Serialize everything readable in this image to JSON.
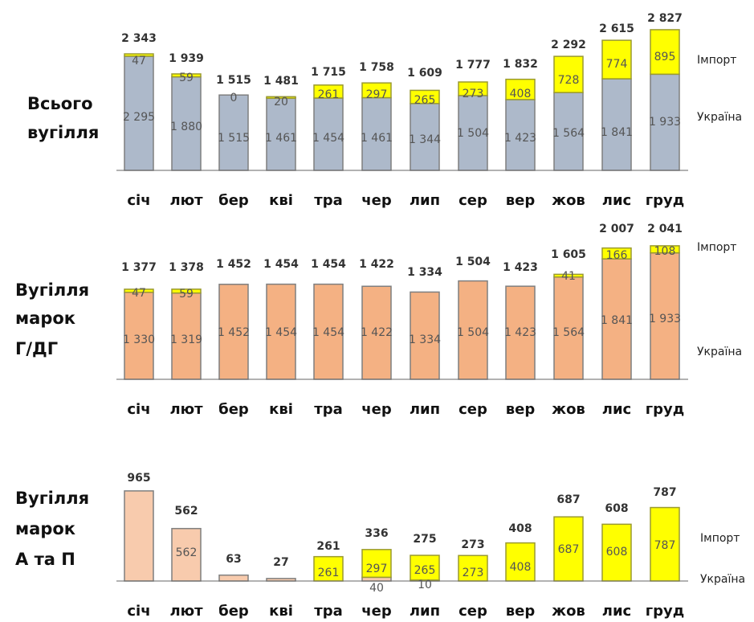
{
  "colors": {
    "ukraine_total": "#adb9ca",
    "ukraine_gdg": "#f4b183",
    "ukraine_ap": "#f8cbad",
    "import": "#ffff00",
    "bar_stroke": "#7f7f7f",
    "import_stroke": "#9a9a30"
  },
  "chart_data": [
    {
      "type": "bar",
      "stacked": true,
      "row_title": [
        "Всього",
        "вугілля"
      ],
      "categories": [
        "січ",
        "лют",
        "бер",
        "кві",
        "тра",
        "чер",
        "лип",
        "сер",
        "вер",
        "жов",
        "лис",
        "груд"
      ],
      "series": [
        {
          "name": "Україна",
          "values": [
            2295,
            1880,
            1515,
            1461,
            1454,
            1461,
            1344,
            1504,
            1423,
            1564,
            1841,
            1933
          ],
          "labels": [
            "2 295",
            "1 880",
            "1 515",
            "1 461",
            "1 454",
            "1 461",
            "1 344",
            "1 504",
            "1 423",
            "1 564",
            "1 841",
            "1 933"
          ]
        },
        {
          "name": "Імпорт",
          "values": [
            47,
            59,
            0,
            20,
            261,
            297,
            265,
            273,
            408,
            728,
            774,
            895
          ],
          "labels": [
            "47",
            "59",
            "0",
            "20",
            "261",
            "297",
            "265",
            "273",
            "408",
            "728",
            "774",
            "895"
          ]
        }
      ],
      "totals": [
        "2 343",
        "1 939",
        "1 515",
        "1 481",
        "1 715",
        "1 758",
        "1 609",
        "1 777",
        "1 832",
        "2 292",
        "2 615",
        "2 827"
      ],
      "legend": {
        "import": "Імпорт",
        "ukraine": "Україна"
      },
      "ylim": [
        0,
        2900
      ]
    },
    {
      "type": "bar",
      "stacked": true,
      "row_title": [
        "Вугілля",
        "марок",
        "Г/ДГ"
      ],
      "categories": [
        "січ",
        "лют",
        "бер",
        "кві",
        "тра",
        "чер",
        "лип",
        "сер",
        "вер",
        "жов",
        "лис",
        "груд"
      ],
      "series": [
        {
          "name": "Україна",
          "values": [
            1330,
            1319,
            1452,
            1454,
            1454,
            1422,
            1334,
            1504,
            1423,
            1564,
            1841,
            1933
          ],
          "labels": [
            "1 330",
            "1 319",
            "1 452",
            "1 454",
            "1 454",
            "1 422",
            "1 334",
            "1 504",
            "1 423",
            "1 564",
            "1 841",
            "1 933"
          ]
        },
        {
          "name": "Імпорт",
          "values": [
            47,
            59,
            0,
            0,
            0,
            0,
            0,
            0,
            0,
            41,
            166,
            108
          ],
          "labels": [
            "47",
            "59",
            "",
            "",
            "",
            "",
            "",
            "",
            "",
            "41",
            "166",
            "108"
          ]
        }
      ],
      "totals": [
        "1 377",
        "1 378",
        "1 452",
        "1 454",
        "1 454",
        "1 422",
        "1 334",
        "1 504",
        "1 423",
        "1 605",
        "2 007",
        "2 041"
      ],
      "legend": {
        "import": "Імпорт",
        "ukraine": "Україна"
      },
      "ylim": [
        0,
        2100
      ]
    },
    {
      "type": "bar",
      "stacked": true,
      "row_title": [
        "Вугілля",
        "марок",
        "А та П"
      ],
      "categories": [
        "січ",
        "лют",
        "бер",
        "кві",
        "тра",
        "чер",
        "лип",
        "сер",
        "вер",
        "жов",
        "лис",
        "груд"
      ],
      "series": [
        {
          "name": "Україна",
          "values": [
            965,
            562,
            63,
            27,
            0,
            40,
            10,
            0,
            0,
            0,
            0,
            0
          ],
          "labels": [
            "",
            "562",
            "",
            "",
            "",
            "40",
            "10",
            "",
            "",
            "",
            "",
            ""
          ]
        },
        {
          "name": "Імпорт",
          "values": [
            0,
            0,
            0,
            0,
            261,
            297,
            265,
            273,
            408,
            687,
            608,
            787
          ],
          "labels": [
            "",
            "",
            "",
            "",
            "261",
            "297",
            "265",
            "273",
            "408",
            "687",
            "608",
            "787"
          ]
        }
      ],
      "totals": [
        "965",
        "562",
        "63",
        "27",
        "261",
        "336",
        "275",
        "273",
        "408",
        "687",
        "608",
        "787"
      ],
      "legend": {
        "import": "Імпорт",
        "ukraine": "Україна"
      },
      "ylim": [
        0,
        1000
      ]
    }
  ]
}
